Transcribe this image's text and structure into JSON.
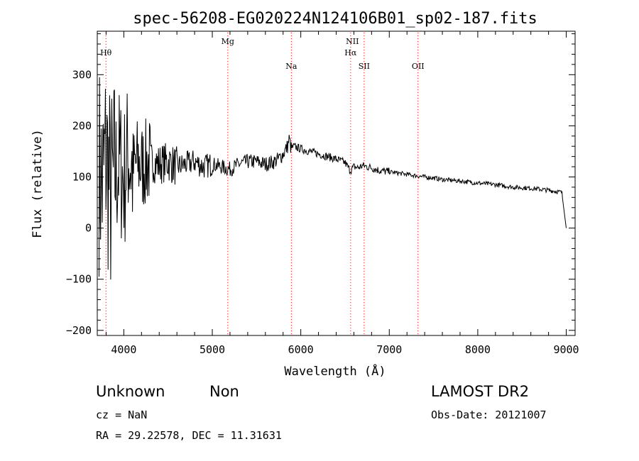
{
  "chart_data": {
    "type": "line",
    "title": "spec-56208-EG020224N124106B01_sp02-187.fits",
    "xlabel": "Wavelength (Å)",
    "ylabel": "Flux (relative)",
    "xlim": [
      3700,
      9100
    ],
    "ylim": [
      -210,
      385
    ],
    "xticks": [
      4000,
      5000,
      6000,
      7000,
      8000,
      9000
    ],
    "yticks": [
      -200,
      -100,
      0,
      100,
      200,
      300
    ],
    "grid": false,
    "line_color": "#000000",
    "marker_color": "#ff0000",
    "series": [
      {
        "x": [
          3720,
          3760,
          3800,
          3850,
          3900,
          3950,
          4000,
          4050,
          4100,
          4150,
          4200,
          4300,
          4400,
          4500,
          4600,
          4700,
          4800,
          4900,
          5000,
          5100,
          5200,
          5300,
          5400,
          5500,
          5600,
          5700,
          5750,
          5800,
          5850,
          5870,
          5890,
          5920,
          6000,
          6100,
          6200,
          6300,
          6400,
          6500,
          6560,
          6600,
          6650,
          6700,
          6800,
          6900,
          7000,
          7200,
          7400,
          7500,
          7600,
          7800,
          8000,
          8200,
          8400,
          8600,
          8800,
          8950,
          9000
        ],
        "y": [
          120,
          80,
          150,
          60,
          100,
          130,
          90,
          150,
          110,
          130,
          120,
          130,
          125,
          130,
          120,
          125,
          130,
          120,
          125,
          120,
          115,
          125,
          130,
          130,
          125,
          130,
          135,
          145,
          160,
          175,
          155,
          160,
          155,
          150,
          145,
          140,
          135,
          128,
          112,
          120,
          118,
          122,
          118,
          112,
          110,
          105,
          100,
          98,
          95,
          92,
          88,
          85,
          80,
          78,
          74,
          70,
          0
        ]
      }
    ],
    "lines": [
      {
        "label": "Hθ",
        "x": 3798
      },
      {
        "label": "Mg",
        "x": 5175
      },
      {
        "label": "Na",
        "x": 5893
      },
      {
        "label": "NII",
        "x": 6583
      },
      {
        "label": "Hα",
        "x": 6563
      },
      {
        "label": "SII",
        "x": 6716
      },
      {
        "label": "OII",
        "x": 7325
      }
    ]
  },
  "info": {
    "class_label": "Unknown",
    "subclass_label": "Non",
    "survey": "LAMOST DR2",
    "cz": "cz = NaN",
    "obs_date": "Obs-Date: 20121007",
    "coords": "RA =  29.22578, DEC =  11.31631"
  }
}
